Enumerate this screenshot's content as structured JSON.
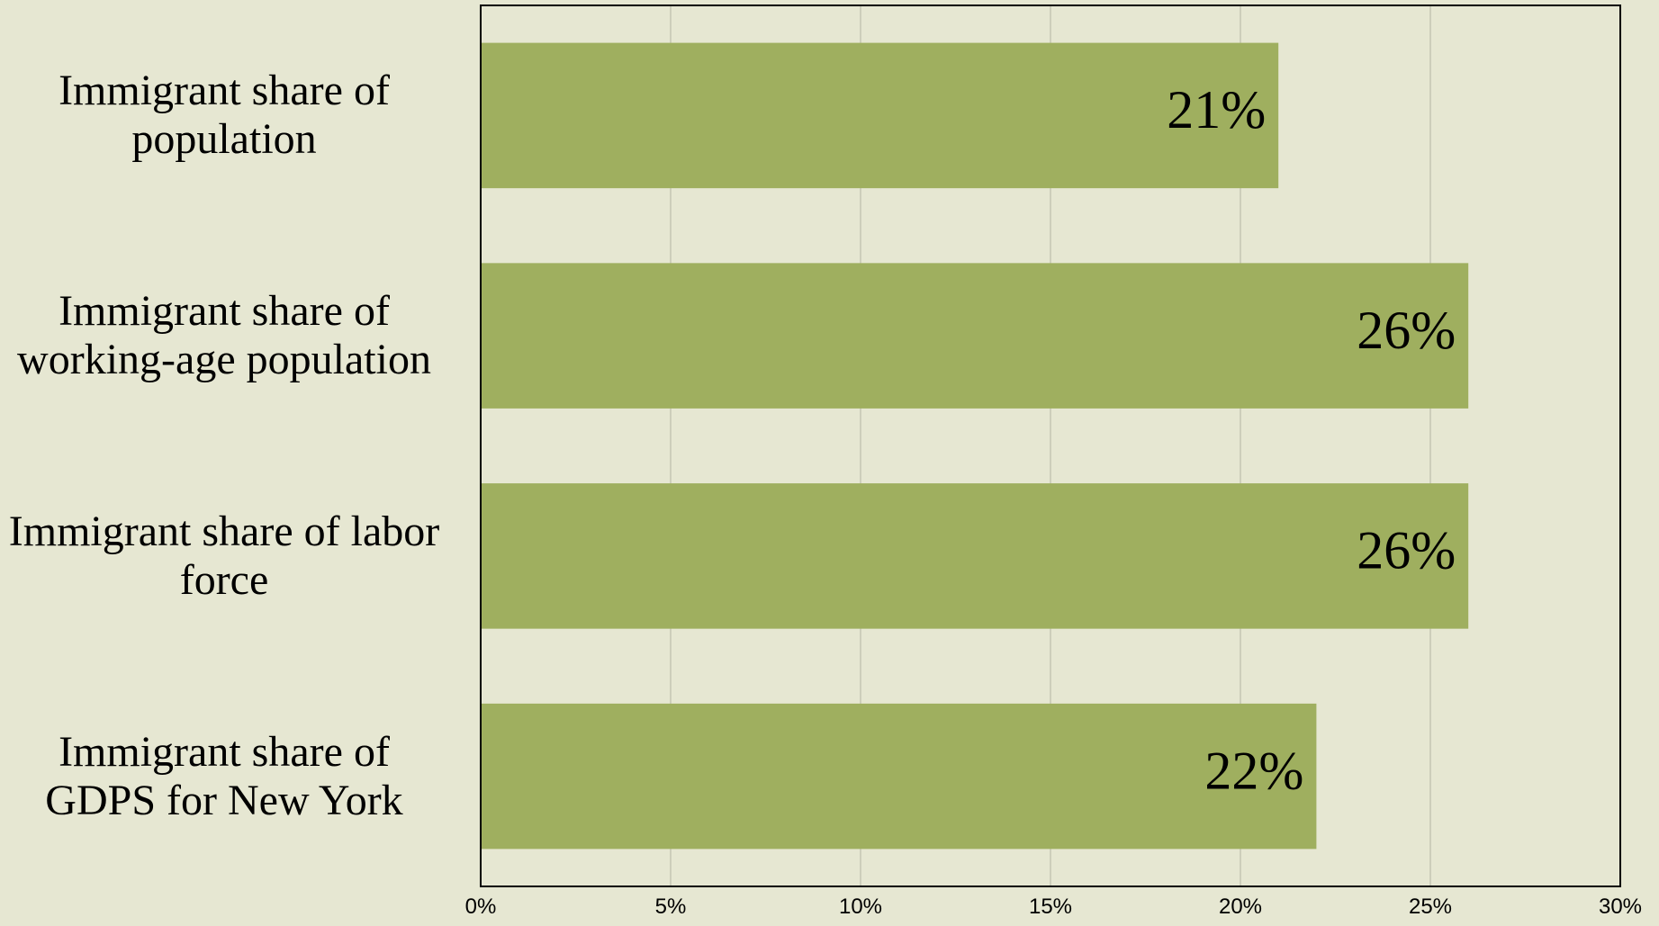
{
  "chart_data": {
    "type": "bar",
    "orientation": "horizontal",
    "categories": [
      "Immigrant share of population",
      "Immigrant share of working-age population",
      "Immigrant share of labor force",
      "Immigrant share of GDPS for New York"
    ],
    "values": [
      21,
      26,
      26,
      22
    ],
    "value_labels": [
      "21%",
      "26%",
      "26%",
      "22%"
    ],
    "color": "#9faf5f",
    "xlim": [
      0,
      30
    ],
    "xticks": [
      {
        "value": 0,
        "label": "0%"
      },
      {
        "value": 5,
        "label": "5%"
      },
      {
        "value": 10,
        "label": "10%"
      },
      {
        "value": 15,
        "label": "15%"
      },
      {
        "value": 20,
        "label": "20%"
      },
      {
        "value": 25,
        "label": "25%"
      },
      {
        "value": 30,
        "label": "30%"
      }
    ],
    "grid": true
  }
}
